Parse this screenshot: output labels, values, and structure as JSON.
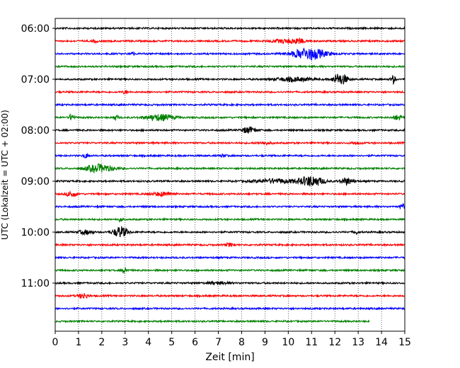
{
  "chart_data": {
    "type": "line",
    "title": "",
    "xlabel": "Zeit  [min]",
    "ylabel": "UTC (Lokalzeit = UTC + 02:00)",
    "xlim": [
      0,
      15
    ],
    "xticks": [
      0,
      1,
      2,
      3,
      4,
      5,
      6,
      7,
      8,
      9,
      10,
      11,
      12,
      13,
      14,
      15
    ],
    "yticks": [
      "06:00",
      "07:00",
      "08:00",
      "09:00",
      "10:00",
      "11:00"
    ],
    "grid": "vertical-dotted",
    "colors": [
      "#000000",
      "#ff0000",
      "#0000ff",
      "#008000"
    ],
    "trace_interval_min": 15,
    "traces": [
      {
        "start": "06:00",
        "color": "#000000",
        "end_min": 15,
        "events": []
      },
      {
        "start": "06:15",
        "color": "#ff0000",
        "end_min": 15,
        "events": [
          [
            10.4,
            0.6,
            0.3
          ],
          [
            9.8,
            0.4,
            0.5
          ],
          [
            1.7,
            0.4,
            0.1
          ]
        ]
      },
      {
        "start": "06:30",
        "color": "#0000ff",
        "end_min": 15,
        "events": [
          [
            10.9,
            1.5,
            0.7
          ],
          [
            3.3,
            0.4,
            0.1
          ]
        ]
      },
      {
        "start": "06:45",
        "color": "#008000",
        "end_min": 15,
        "events": []
      },
      {
        "start": "07:00",
        "color": "#000000",
        "end_min": 15,
        "events": [
          [
            12.1,
            1.2,
            0.2
          ],
          [
            12.4,
            1.0,
            0.2
          ],
          [
            14.5,
            1.0,
            0.1
          ],
          [
            10.2,
            0.5,
            0.8
          ]
        ]
      },
      {
        "start": "07:15",
        "color": "#ff0000",
        "end_min": 15,
        "events": [
          [
            3.0,
            0.4,
            0.1
          ]
        ]
      },
      {
        "start": "07:30",
        "color": "#0000ff",
        "end_min": 15,
        "events": []
      },
      {
        "start": "07:45",
        "color": "#008000",
        "end_min": 15,
        "events": [
          [
            4.5,
            0.8,
            0.6
          ],
          [
            0.7,
            0.9,
            0.1
          ],
          [
            2.6,
            0.6,
            0.1
          ],
          [
            14.7,
            0.6,
            0.2
          ]
        ]
      },
      {
        "start": "08:00",
        "color": "#000000",
        "end_min": 15,
        "events": [
          [
            8.3,
            0.8,
            0.3
          ]
        ]
      },
      {
        "start": "08:15",
        "color": "#ff0000",
        "end_min": 15,
        "events": [
          [
            9.0,
            0.3,
            0.3
          ],
          [
            12.9,
            0.3,
            0.2
          ]
        ]
      },
      {
        "start": "08:30",
        "color": "#0000ff",
        "end_min": 15,
        "events": [
          [
            1.3,
            0.6,
            0.1
          ],
          [
            7.2,
            0.4,
            0.1
          ]
        ]
      },
      {
        "start": "08:45",
        "color": "#008000",
        "end_min": 15,
        "events": [
          [
            1.9,
            1.0,
            0.6
          ]
        ]
      },
      {
        "start": "09:00",
        "color": "#000000",
        "end_min": 15,
        "events": [
          [
            11.0,
            1.3,
            0.5
          ],
          [
            12.5,
            0.8,
            0.3
          ],
          [
            9.5,
            0.5,
            1.0
          ]
        ]
      },
      {
        "start": "09:15",
        "color": "#ff0000",
        "end_min": 15,
        "events": [
          [
            0.7,
            0.8,
            0.2
          ],
          [
            4.6,
            0.5,
            0.4
          ]
        ]
      },
      {
        "start": "09:30",
        "color": "#0000ff",
        "end_min": 15,
        "events": [
          [
            14.9,
            0.7,
            0.1
          ]
        ]
      },
      {
        "start": "09:45",
        "color": "#008000",
        "end_min": 15,
        "events": [
          [
            2.8,
            0.5,
            0.1
          ]
        ]
      },
      {
        "start": "10:00",
        "color": "#000000",
        "end_min": 15,
        "events": [
          [
            2.8,
            1.4,
            0.3
          ],
          [
            1.3,
            0.5,
            0.3
          ],
          [
            12.9,
            0.5,
            0.1
          ]
        ]
      },
      {
        "start": "10:15",
        "color": "#ff0000",
        "end_min": 15,
        "events": [
          [
            7.5,
            0.4,
            0.2
          ]
        ]
      },
      {
        "start": "10:30",
        "color": "#0000ff",
        "end_min": 15,
        "events": []
      },
      {
        "start": "10:45",
        "color": "#008000",
        "end_min": 15,
        "events": [
          [
            3.0,
            0.8,
            0.1
          ]
        ]
      },
      {
        "start": "11:00",
        "color": "#000000",
        "end_min": 15,
        "events": [
          [
            7.0,
            0.3,
            0.5
          ]
        ]
      },
      {
        "start": "11:15",
        "color": "#ff0000",
        "end_min": 15,
        "events": [
          [
            1.2,
            0.7,
            0.2
          ]
        ]
      },
      {
        "start": "11:30",
        "color": "#0000ff",
        "end_min": 15,
        "events": []
      },
      {
        "start": "11:45",
        "color": "#008000",
        "end_min": 13.5,
        "events": []
      }
    ]
  }
}
